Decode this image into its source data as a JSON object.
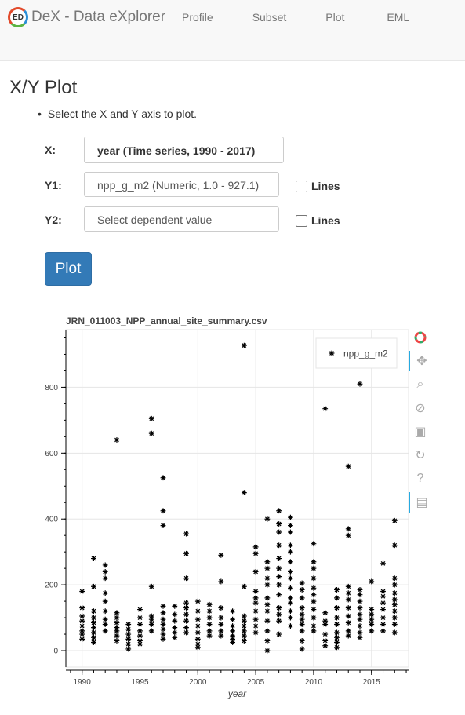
{
  "app": {
    "title": "DeX - Data eXplorer",
    "logo_text": "ED",
    "nav": [
      "Profile",
      "Subset",
      "Plot",
      "EML"
    ]
  },
  "page": {
    "title": "X/Y Plot",
    "instruction": "Select the X and Y axis to plot."
  },
  "form": {
    "x_label": "X:",
    "x_value": "year (Time series, 1990 - 2017)",
    "y1_label": "Y1:",
    "y1_value": "npp_g_m2 (Numeric, 1.0 - 927.1)",
    "y2_label": "Y2:",
    "y2_placeholder": "Select dependent value",
    "lines_label": "Lines",
    "plot_button": "Plot"
  },
  "chart_data": {
    "type": "scatter",
    "title": "JRN_011003_NPP_annual_site_summary.csv",
    "xlabel": "year",
    "ylabel": "",
    "xlim": [
      1988.6,
      2018.2
    ],
    "ylim": [
      -50,
      975
    ],
    "xticks": [
      1990,
      1995,
      2000,
      2005,
      2010,
      2015
    ],
    "yticks": [
      0,
      200,
      400,
      600,
      800
    ],
    "grid": true,
    "legend_position": "top-right",
    "marker": "asterisk",
    "series": [
      {
        "name": "npp_g_m2",
        "points": [
          [
            1990,
            180
          ],
          [
            1990,
            130
          ],
          [
            1990,
            105
          ],
          [
            1990,
            90
          ],
          [
            1990,
            75
          ],
          [
            1990,
            60
          ],
          [
            1990,
            50
          ],
          [
            1990,
            35
          ],
          [
            1991,
            280
          ],
          [
            1991,
            195
          ],
          [
            1991,
            120
          ],
          [
            1991,
            100
          ],
          [
            1991,
            85
          ],
          [
            1991,
            70
          ],
          [
            1991,
            55
          ],
          [
            1991,
            40
          ],
          [
            1991,
            25
          ],
          [
            1992,
            260
          ],
          [
            1992,
            240
          ],
          [
            1992,
            220
          ],
          [
            1992,
            175
          ],
          [
            1992,
            150
          ],
          [
            1992,
            120
          ],
          [
            1992,
            95
          ],
          [
            1992,
            80
          ],
          [
            1992,
            60
          ],
          [
            1993,
            640
          ],
          [
            1993,
            115
          ],
          [
            1993,
            100
          ],
          [
            1993,
            85
          ],
          [
            1993,
            70
          ],
          [
            1993,
            60
          ],
          [
            1993,
            45
          ],
          [
            1993,
            30
          ],
          [
            1994,
            80
          ],
          [
            1994,
            65
          ],
          [
            1994,
            50
          ],
          [
            1994,
            35
          ],
          [
            1994,
            20
          ],
          [
            1994,
            5
          ],
          [
            1995,
            125
          ],
          [
            1995,
            100
          ],
          [
            1995,
            80
          ],
          [
            1995,
            60
          ],
          [
            1995,
            45
          ],
          [
            1995,
            30
          ],
          [
            1995,
            20
          ],
          [
            1996,
            705
          ],
          [
            1996,
            660
          ],
          [
            1996,
            195
          ],
          [
            1996,
            105
          ],
          [
            1996,
            95
          ],
          [
            1996,
            80
          ],
          [
            1996,
            60
          ],
          [
            1997,
            525
          ],
          [
            1997,
            425
          ],
          [
            1997,
            380
          ],
          [
            1997,
            135
          ],
          [
            1997,
            115
          ],
          [
            1997,
            95
          ],
          [
            1997,
            80
          ],
          [
            1997,
            65
          ],
          [
            1997,
            50
          ],
          [
            1997,
            35
          ],
          [
            1998,
            135
          ],
          [
            1998,
            110
          ],
          [
            1998,
            90
          ],
          [
            1998,
            70
          ],
          [
            1998,
            55
          ],
          [
            1998,
            40
          ],
          [
            1999,
            355
          ],
          [
            1999,
            295
          ],
          [
            1999,
            220
          ],
          [
            1999,
            145
          ],
          [
            1999,
            130
          ],
          [
            1999,
            110
          ],
          [
            1999,
            90
          ],
          [
            1999,
            70
          ],
          [
            1999,
            55
          ],
          [
            2000,
            150
          ],
          [
            2000,
            120
          ],
          [
            2000,
            95
          ],
          [
            2000,
            75
          ],
          [
            2000,
            55
          ],
          [
            2000,
            35
          ],
          [
            2000,
            20
          ],
          [
            2000,
            10
          ],
          [
            2001,
            140
          ],
          [
            2001,
            120
          ],
          [
            2001,
            100
          ],
          [
            2001,
            80
          ],
          [
            2001,
            60
          ],
          [
            2001,
            45
          ],
          [
            2002,
            290
          ],
          [
            2002,
            210
          ],
          [
            2002,
            130
          ],
          [
            2002,
            100
          ],
          [
            2002,
            80
          ],
          [
            2002,
            60
          ],
          [
            2002,
            45
          ],
          [
            2003,
            120
          ],
          [
            2003,
            95
          ],
          [
            2003,
            75
          ],
          [
            2003,
            60
          ],
          [
            2003,
            45
          ],
          [
            2003,
            35
          ],
          [
            2003,
            25
          ],
          [
            2004,
            927
          ],
          [
            2004,
            480
          ],
          [
            2004,
            195
          ],
          [
            2004,
            105
          ],
          [
            2004,
            90
          ],
          [
            2004,
            75
          ],
          [
            2004,
            60
          ],
          [
            2004,
            45
          ],
          [
            2004,
            30
          ],
          [
            2005,
            315
          ],
          [
            2005,
            295
          ],
          [
            2005,
            240
          ],
          [
            2005,
            180
          ],
          [
            2005,
            160
          ],
          [
            2005,
            145
          ],
          [
            2005,
            120
          ],
          [
            2005,
            95
          ],
          [
            2005,
            75
          ],
          [
            2005,
            55
          ],
          [
            2006,
            400
          ],
          [
            2006,
            270
          ],
          [
            2006,
            250
          ],
          [
            2006,
            220
          ],
          [
            2006,
            200
          ],
          [
            2006,
            160
          ],
          [
            2006,
            140
          ],
          [
            2006,
            120
          ],
          [
            2006,
            90
          ],
          [
            2006,
            60
          ],
          [
            2006,
            30
          ],
          [
            2006,
            0
          ],
          [
            2007,
            425
          ],
          [
            2007,
            385
          ],
          [
            2007,
            360
          ],
          [
            2007,
            320
          ],
          [
            2007,
            280
          ],
          [
            2007,
            250
          ],
          [
            2007,
            225
          ],
          [
            2007,
            200
          ],
          [
            2007,
            170
          ],
          [
            2007,
            130
          ],
          [
            2007,
            110
          ],
          [
            2007,
            90
          ],
          [
            2007,
            50
          ],
          [
            2008,
            405
          ],
          [
            2008,
            380
          ],
          [
            2008,
            360
          ],
          [
            2008,
            320
          ],
          [
            2008,
            300
          ],
          [
            2008,
            270
          ],
          [
            2008,
            240
          ],
          [
            2008,
            220
          ],
          [
            2008,
            190
          ],
          [
            2008,
            160
          ],
          [
            2008,
            145
          ],
          [
            2008,
            120
          ],
          [
            2008,
            100
          ],
          [
            2008,
            75
          ],
          [
            2009,
            205
          ],
          [
            2009,
            185
          ],
          [
            2009,
            160
          ],
          [
            2009,
            130
          ],
          [
            2009,
            110
          ],
          [
            2009,
            95
          ],
          [
            2009,
            80
          ],
          [
            2009,
            60
          ],
          [
            2009,
            30
          ],
          [
            2009,
            5
          ],
          [
            2010,
            325
          ],
          [
            2010,
            270
          ],
          [
            2010,
            250
          ],
          [
            2010,
            220
          ],
          [
            2010,
            190
          ],
          [
            2010,
            170
          ],
          [
            2010,
            150
          ],
          [
            2010,
            125
          ],
          [
            2010,
            100
          ],
          [
            2010,
            75
          ],
          [
            2010,
            60
          ],
          [
            2011,
            735
          ],
          [
            2011,
            115
          ],
          [
            2011,
            90
          ],
          [
            2011,
            80
          ],
          [
            2011,
            50
          ],
          [
            2011,
            30
          ],
          [
            2011,
            15
          ],
          [
            2012,
            185
          ],
          [
            2012,
            160
          ],
          [
            2012,
            130
          ],
          [
            2012,
            100
          ],
          [
            2012,
            80
          ],
          [
            2012,
            55
          ],
          [
            2012,
            40
          ],
          [
            2012,
            25
          ],
          [
            2012,
            10
          ],
          [
            2013,
            560
          ],
          [
            2013,
            370
          ],
          [
            2013,
            350
          ],
          [
            2013,
            195
          ],
          [
            2013,
            175
          ],
          [
            2013,
            155
          ],
          [
            2013,
            130
          ],
          [
            2013,
            105
          ],
          [
            2013,
            85
          ],
          [
            2013,
            60
          ],
          [
            2013,
            45
          ],
          [
            2014,
            810
          ],
          [
            2014,
            185
          ],
          [
            2014,
            170
          ],
          [
            2014,
            150
          ],
          [
            2014,
            130
          ],
          [
            2014,
            110
          ],
          [
            2014,
            95
          ],
          [
            2014,
            75
          ],
          [
            2014,
            55
          ],
          [
            2014,
            40
          ],
          [
            2015,
            210
          ],
          [
            2015,
            125
          ],
          [
            2015,
            110
          ],
          [
            2015,
            95
          ],
          [
            2015,
            80
          ],
          [
            2015,
            60
          ],
          [
            2016,
            265
          ],
          [
            2016,
            180
          ],
          [
            2016,
            165
          ],
          [
            2016,
            145
          ],
          [
            2016,
            125
          ],
          [
            2016,
            100
          ],
          [
            2016,
            80
          ],
          [
            2016,
            60
          ],
          [
            2017,
            395
          ],
          [
            2017,
            320
          ],
          [
            2017,
            220
          ],
          [
            2017,
            200
          ],
          [
            2017,
            175
          ],
          [
            2017,
            155
          ],
          [
            2017,
            140
          ],
          [
            2017,
            120
          ],
          [
            2017,
            100
          ],
          [
            2017,
            80
          ],
          [
            2017,
            55
          ]
        ]
      }
    ]
  },
  "toolbar": {
    "tools": [
      "bokeh-logo-icon",
      "pan-icon",
      "box-zoom-icon",
      "wheel-zoom-icon",
      "save-icon",
      "reset-icon",
      "help-icon",
      "hover-icon"
    ]
  }
}
